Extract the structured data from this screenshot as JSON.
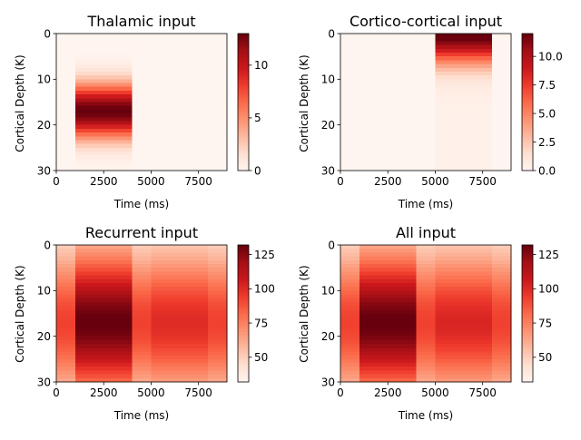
{
  "chart_data": [
    {
      "type": "heatmap",
      "title": "Thalamic input",
      "xlabel": "Time (ms)",
      "ylabel": "Cortical Depth (K)",
      "xlim": [
        0,
        9000
      ],
      "ylim": [
        30,
        0
      ],
      "xticks": [
        "0",
        "2500",
        "5000",
        "7500"
      ],
      "yticks": [
        "0",
        "10",
        "20",
        "30"
      ],
      "colormap": "Reds",
      "colorbar": {
        "min": 0,
        "max": 13,
        "ticks": [
          "0",
          "5",
          "10"
        ]
      },
      "pulses": [
        {
          "t_start": 1000,
          "t_end": 4000,
          "depth_center": 17,
          "depth_sigma": 4.2,
          "peak": 13
        }
      ],
      "baseline": 0
    },
    {
      "type": "heatmap",
      "title": "Cortico-cortical input",
      "xlabel": "Time (ms)",
      "ylabel": "Cortical Depth (K)",
      "xlim": [
        0,
        9000
      ],
      "ylim": [
        30,
        0
      ],
      "xticks": [
        "0",
        "2500",
        "5000",
        "7500"
      ],
      "yticks": [
        "0",
        "10",
        "20",
        "30"
      ],
      "colormap": "Reds",
      "colorbar": {
        "min": 0,
        "max": 12,
        "ticks": [
          "0.0",
          "2.5",
          "5.0",
          "7.5",
          "10.0"
        ]
      },
      "pulses": [
        {
          "t_start": 5000,
          "t_end": 8000,
          "depth_center": 0,
          "depth_sigma": 4.5,
          "peak": 12,
          "floor": 0.35
        }
      ],
      "baseline": 0
    },
    {
      "type": "heatmap",
      "title": "Recurrent input",
      "xlabel": "Time (ms)",
      "ylabel": "Cortical Depth (K)",
      "xlim": [
        0,
        9000
      ],
      "ylim": [
        30,
        0
      ],
      "xticks": [
        "0",
        "2500",
        "5000",
        "7500"
      ],
      "yticks": [
        "0",
        "10",
        "20",
        "30"
      ],
      "colormap": "Reds",
      "colorbar": {
        "min": 32,
        "max": 132,
        "ticks": [
          "50",
          "75",
          "100",
          "125"
        ]
      },
      "segments": [
        {
          "t_start": 0,
          "t_end": 1000,
          "peak": 93
        },
        {
          "t_start": 1000,
          "t_end": 4000,
          "peak": 132
        },
        {
          "t_start": 4000,
          "t_end": 5000,
          "peak": 93
        },
        {
          "t_start": 5000,
          "t_end": 8000,
          "peak": 100
        },
        {
          "t_start": 8000,
          "t_end": 9000,
          "peak": 93
        }
      ],
      "depth_center": 17,
      "depth_sigma": 11,
      "baseline": 32
    },
    {
      "type": "heatmap",
      "title": "All input",
      "xlabel": "Time (ms)",
      "ylabel": "Cortical Depth (K)",
      "xlim": [
        0,
        9000
      ],
      "ylim": [
        30,
        0
      ],
      "xticks": [
        "0",
        "2500",
        "5000",
        "7500"
      ],
      "yticks": [
        "0",
        "10",
        "20",
        "30"
      ],
      "colormap": "Reds",
      "colorbar": {
        "min": 32,
        "max": 132,
        "ticks": [
          "50",
          "75",
          "100",
          "125"
        ]
      },
      "segments": [
        {
          "t_start": 0,
          "t_end": 1000,
          "peak": 93
        },
        {
          "t_start": 1000,
          "t_end": 4000,
          "peak": 132
        },
        {
          "t_start": 4000,
          "t_end": 5000,
          "peak": 93
        },
        {
          "t_start": 5000,
          "t_end": 8000,
          "peak": 102
        },
        {
          "t_start": 8000,
          "t_end": 9000,
          "peak": 93
        }
      ],
      "depth_center": 17,
      "depth_sigma": 11,
      "baseline": 32
    }
  ]
}
